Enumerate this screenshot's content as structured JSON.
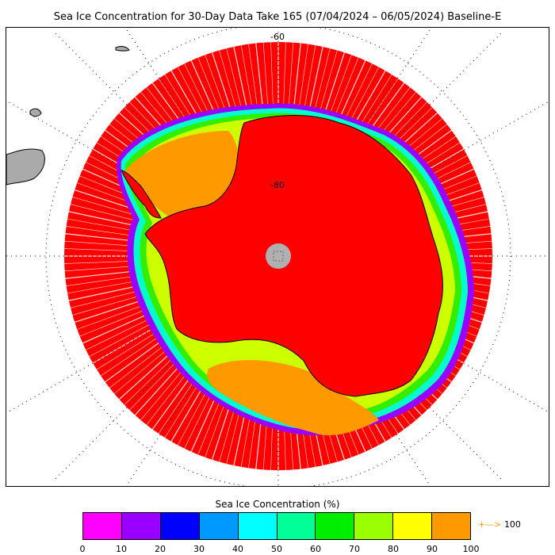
{
  "title": "Sea Ice Concentration for 30-Day Data Take 165 (07/04/2024 – 06/05/2024) Baseline-E",
  "map": {
    "lat_labels": [
      "-60",
      "-80"
    ],
    "pole_hole_color": "#b0b0b0",
    "land_color": "#aaaaaa"
  },
  "colorbar": {
    "title": "Sea Ice Concentration (%)",
    "colors": [
      "#ff00ff",
      "#9900ff",
      "#0000ff",
      "#0099ff",
      "#00ffff",
      "#00ff99",
      "#00ee00",
      "#99ff00",
      "#ffff00",
      "#ff9900"
    ],
    "ticks": [
      "0",
      "10",
      "20",
      "30",
      "40",
      "50",
      "60",
      "70",
      "80",
      "90",
      "100"
    ],
    "overflow_label": "100",
    "overflow_arrow": "+—>"
  }
}
